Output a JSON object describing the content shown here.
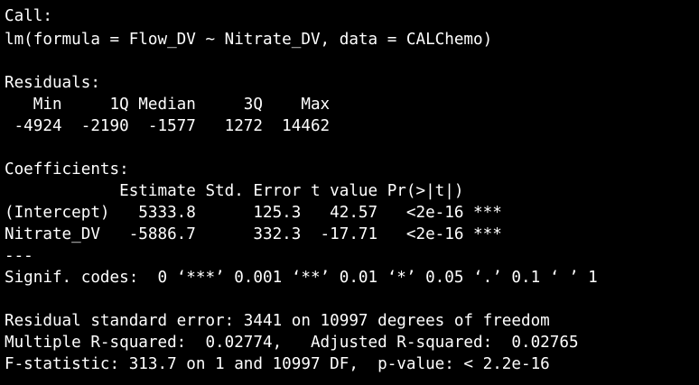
{
  "theme": {
    "background": "#000000",
    "foreground": "#ffffff"
  },
  "console": {
    "lines": [
      "Call:",
      "lm(formula = Flow_DV ~ Nitrate_DV, data = CALChemo)",
      "",
      "Residuals:",
      "   Min     1Q Median     3Q    Max ",
      " -4924  -2190  -1577   1272  14462 ",
      "",
      "Coefficients:",
      "            Estimate Std. Error t value Pr(>|t|)    ",
      "(Intercept)   5333.8      125.3   42.57   <2e-16 ***",
      "Nitrate_DV   -5886.7      332.3  -17.71   <2e-16 ***",
      "---",
      "Signif. codes:  0 ‘***’ 0.001 ‘**’ 0.01 ‘*’ 0.05 ‘.’ 0.1 ‘ ’ 1",
      "",
      "Residual standard error: 3441 on 10997 degrees of freedom",
      "Multiple R-squared:  0.02774,\tAdjusted R-squared:  0.02765 ",
      "F-statistic: 313.7 on 1 and 10997 DF,  p-value: < 2.2e-16"
    ]
  }
}
